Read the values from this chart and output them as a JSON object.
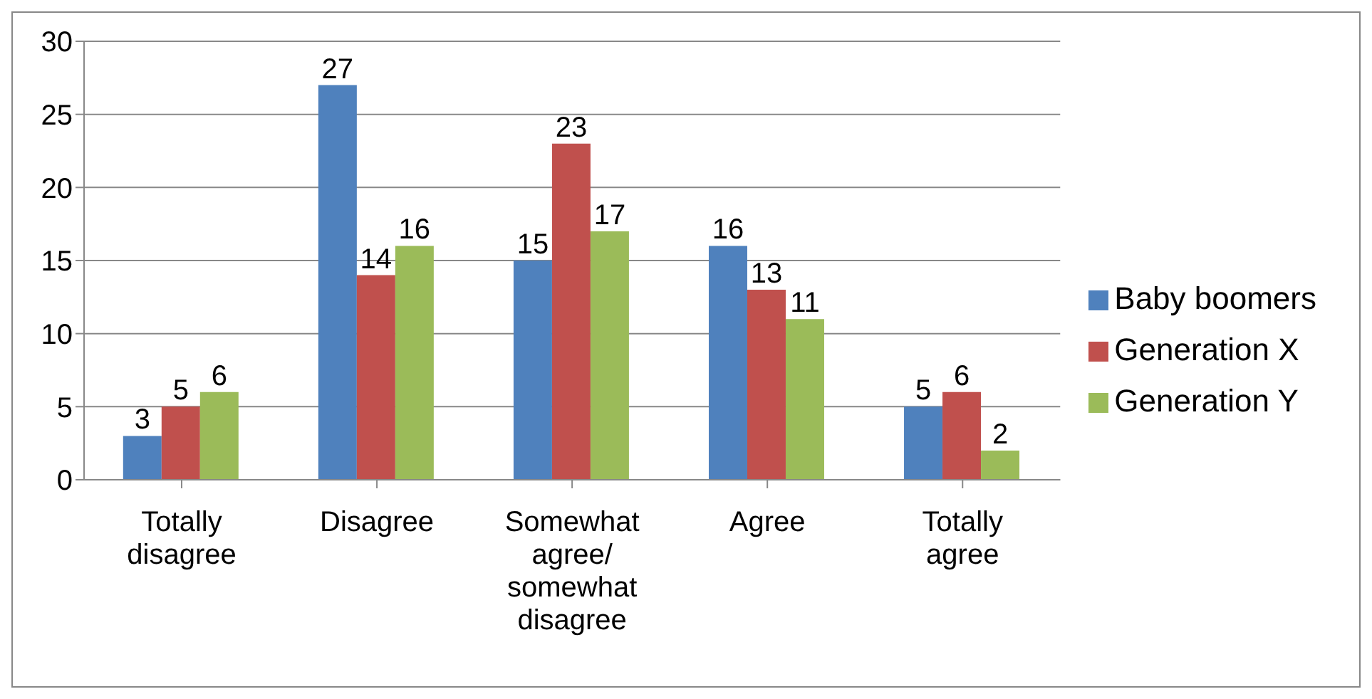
{
  "chart_data": {
    "type": "bar",
    "categories": [
      "Totally disagree",
      "Disagree",
      "Somewhat agree/ somewhat disagree",
      "Agree",
      "Totally agree"
    ],
    "series": [
      {
        "name": "Baby boomers",
        "color": "#4f81bd",
        "values": [
          3,
          27,
          15,
          16,
          5
        ]
      },
      {
        "name": "Generation X",
        "color": "#c0504d",
        "values": [
          5,
          14,
          23,
          13,
          6
        ]
      },
      {
        "name": "Generation Y",
        "color": "#9bbb59",
        "values": [
          6,
          16,
          17,
          11,
          2
        ]
      }
    ],
    "ylim": [
      0,
      30
    ],
    "yticks": [
      0,
      5,
      10,
      15,
      20,
      25,
      30
    ],
    "grid": "y",
    "legend": "right",
    "data_labels": true
  }
}
